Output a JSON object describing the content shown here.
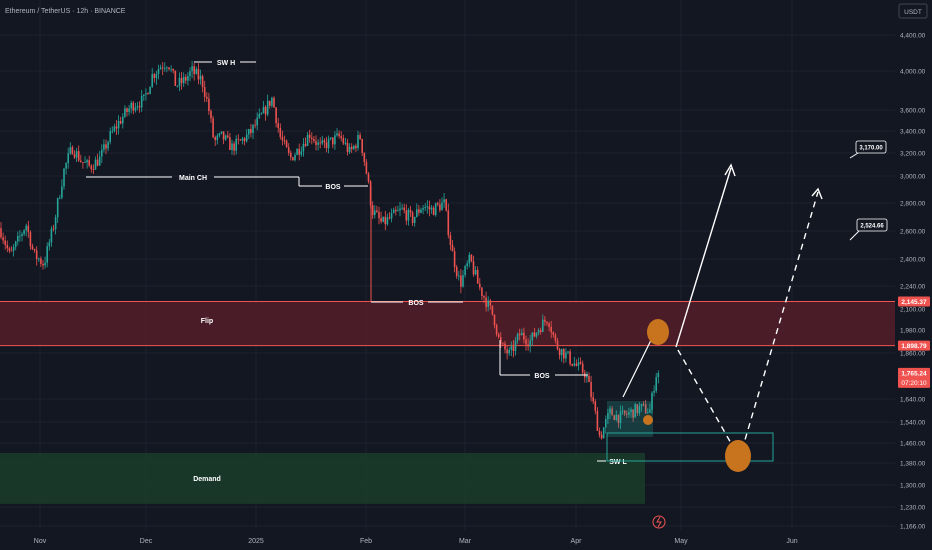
{
  "header": {
    "symbol_line": "Ethereum / TetherUS · 12h · BINANCE",
    "currency_badge": "USDT"
  },
  "colors": {
    "background": "#131722",
    "grid": "#1e2230",
    "up": "#26a69a",
    "down": "#ef5350",
    "flip_zone": "#5c1f2a",
    "demand_zone": "#1b3b2a",
    "text": "#b2b5be",
    "annotation": "#ffffff",
    "marker": "#c8741e"
  },
  "chart_data": {
    "type": "candlestick",
    "title": "",
    "x_ticks": [
      "Nov",
      "Dec",
      "2025",
      "Feb",
      "Mar",
      "Apr",
      "May",
      "Jun"
    ],
    "y_ticks": [
      1166,
      1230,
      1300,
      1380,
      1460,
      1540,
      1640,
      1860,
      1980,
      2100,
      2240,
      2400,
      2600,
      2800,
      3000,
      3200,
      3400,
      3600,
      4000,
      4400
    ],
    "y_tick_labels": [
      "1,166.00",
      "1,230.00",
      "1,300.00",
      "1,380.00",
      "1,460.00",
      "1,540.00",
      "1,640.00",
      "1,860.00",
      "1,980.00",
      "2,100.00",
      "2,240.00",
      "2,400.00",
      "2,600.00",
      "2,800.00",
      "3,000.00",
      "3,200.00",
      "3,400.00",
      "3,600.00",
      "4,000.00",
      "4,400.00"
    ],
    "price_labels": [
      {
        "value": 2145.37,
        "text": "2,145.37",
        "style": "red"
      },
      {
        "value": 1898.79,
        "text": "1,898.79",
        "style": "red"
      },
      {
        "value": 1765.24,
        "text": "1,765.24",
        "style": "red",
        "sub": "07:20:10"
      }
    ],
    "target_labels": [
      {
        "value": 3170,
        "text": "3,170.00"
      },
      {
        "value": 2524.66,
        "text": "2,524.66"
      }
    ],
    "zones": [
      {
        "name": "Flip",
        "low": 1898.79,
        "high": 2145.37,
        "start": "Nov",
        "end": "right"
      },
      {
        "name": "Demand",
        "low": 1240,
        "high": 1420,
        "start": "left",
        "end": "Apr"
      }
    ],
    "structure_labels": [
      "SW H",
      "Main CH",
      "BOS",
      "BOS",
      "BOS",
      "SW L"
    ],
    "zone_labels": [
      "Flip",
      "Demand"
    ],
    "ohlc_series": "ETHUSDT 12h candles from late October 2024 to late April 2025, low about 1385 in April, high about 4100 in mid December"
  }
}
